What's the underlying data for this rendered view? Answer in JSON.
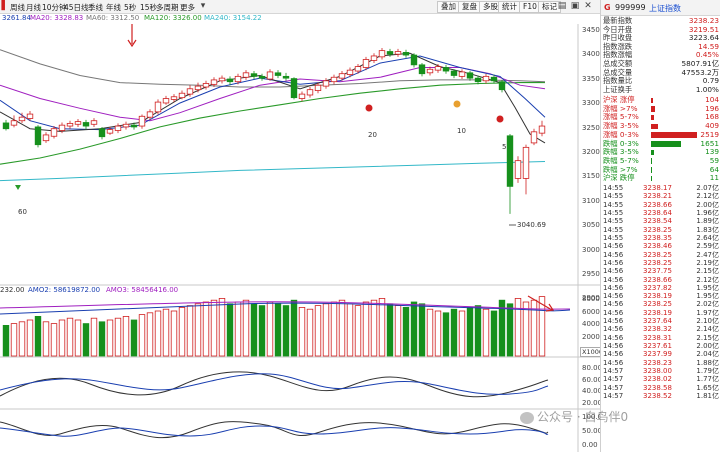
{
  "toolbar": {
    "items": [
      "周线",
      "月线",
      "10分钟",
      "45日线",
      "季线",
      "年线",
      "5秒",
      "15秒",
      "多周期",
      "更多"
    ],
    "buttons": [
      "叠加",
      "复盘",
      "多股",
      "统计",
      "F10",
      "标记"
    ]
  },
  "ma_legend": {
    "items": [
      {
        "text": "3261.84",
        "color": "#1a3fb0"
      },
      {
        "text": "MA20: 3328.83",
        "color": "#a020c0"
      },
      {
        "text": "MA60: 3312.50",
        "color": "#777777"
      },
      {
        "text": "MA120: 3326.00",
        "color": "#2a9a2a"
      },
      {
        "text": "MA240: 3154.22",
        "color": "#33b8c8"
      }
    ]
  },
  "price_axis": [
    "3450",
    "3400",
    "3350",
    "3300",
    "3250",
    "3200",
    "3150",
    "3100",
    "3050",
    "3000",
    "2950",
    "2900"
  ],
  "annotations": {
    "low_label": "3040.69",
    "n20": "20",
    "n10": "10",
    "n5": "5",
    "n60": "60"
  },
  "volume_legend": {
    "items": [
      {
        "text": "232.00",
        "color": "#333333"
      },
      {
        "text": "AMO2: 58619872.00",
        "color": "#1a3fb0"
      },
      {
        "text": "AMO3: 58456416.00",
        "color": "#a020c0"
      }
    ]
  },
  "volume_axis": [
    "80000",
    "60000",
    "40000",
    "20000"
  ],
  "volume_unit": "X1000",
  "indicator1_axis": [
    "80.00",
    "60.00",
    "40.00",
    "20.00"
  ],
  "indicator2_axis": [
    "100.00",
    "50.00",
    "0.00"
  ],
  "panel": {
    "code": "999999",
    "name": "上证指数",
    "stats": [
      {
        "label": "最新指数",
        "value": "3238.23",
        "color": "#d02020"
      },
      {
        "label": "今日开盘",
        "value": "3219.51",
        "color": "#d02020"
      },
      {
        "label": "昨日收盘",
        "value": "3223.64",
        "color": "#222222"
      },
      {
        "label": "指数涨跌",
        "value": "14.59",
        "color": "#d02020"
      },
      {
        "label": "指数涨幅",
        "value": "0.45%",
        "color": "#d02020"
      },
      {
        "label": "总成交额",
        "value": "5807.91亿",
        "color": "#222222"
      },
      {
        "label": "总成交量",
        "value": "47553.2万",
        "color": "#222222"
      },
      {
        "label": "指数量比",
        "value": "0.79",
        "color": "#222222"
      },
      {
        "label": "上证换手",
        "value": "1.00%",
        "color": "#222222"
      }
    ],
    "distribution": [
      {
        "label": "沪深 涨停",
        "value": "104",
        "bar": 0.04,
        "color": "#d02020"
      },
      {
        "label": "涨幅 >7%",
        "value": "196",
        "bar": 0.08,
        "color": "#d02020"
      },
      {
        "label": "涨幅 5-7%",
        "value": "168",
        "bar": 0.07,
        "color": "#d02020"
      },
      {
        "label": "涨幅 3-5%",
        "value": "409",
        "bar": 0.16,
        "color": "#d02020"
      },
      {
        "label": "涨幅 0-3%",
        "value": "2519",
        "bar": 1.0,
        "color": "#d02020"
      },
      {
        "label": "跌幅 0-3%",
        "value": "1651",
        "bar": 0.66,
        "color": "#16901c"
      },
      {
        "label": "跌幅 3-5%",
        "value": "139",
        "bar": 0.06,
        "color": "#16901c"
      },
      {
        "label": "跌幅 5-7%",
        "value": "59",
        "bar": 0.02,
        "color": "#16901c"
      },
      {
        "label": "跌幅 >7%",
        "value": "64",
        "bar": 0.03,
        "color": "#16901c"
      },
      {
        "label": "沪深 跌停",
        "value": "11",
        "bar": 0.005,
        "color": "#16901c"
      }
    ],
    "ticks": [
      {
        "time": "14:55",
        "price": "3238.17",
        "vol": "2.07亿"
      },
      {
        "time": "14:55",
        "price": "3238.21",
        "vol": "2.12亿"
      },
      {
        "time": "14:55",
        "price": "3238.66",
        "vol": "2.00亿"
      },
      {
        "time": "14:55",
        "price": "3238.64",
        "vol": "1.96亿"
      },
      {
        "time": "14:55",
        "price": "3238.54",
        "vol": "1.89亿"
      },
      {
        "time": "14:55",
        "price": "3238.25",
        "vol": "1.83亿"
      },
      {
        "time": "14:55",
        "price": "3238.35",
        "vol": "2.64亿"
      },
      {
        "time": "14:56",
        "price": "3238.46",
        "vol": "2.59亿"
      },
      {
        "time": "14:56",
        "price": "3238.25",
        "vol": "2.47亿"
      },
      {
        "time": "14:56",
        "price": "3238.25",
        "vol": "2.19亿"
      },
      {
        "time": "14:56",
        "price": "3237.75",
        "vol": "2.15亿"
      },
      {
        "time": "14:56",
        "price": "3238.66",
        "vol": "2.12亿"
      },
      {
        "time": "14:56",
        "price": "3237.82",
        "vol": "1.95亿"
      },
      {
        "time": "14:56",
        "price": "3238.19",
        "vol": "1.95亿"
      },
      {
        "time": "14:56",
        "price": "3238.25",
        "vol": "2.02亿"
      },
      {
        "time": "14:56",
        "price": "3238.19",
        "vol": "1.97亿"
      },
      {
        "time": "14:56",
        "price": "3237.64",
        "vol": "2.10亿"
      },
      {
        "time": "14:56",
        "price": "3238.32",
        "vol": "2.14亿"
      },
      {
        "time": "14:56",
        "price": "3238.31",
        "vol": "2.15亿"
      },
      {
        "time": "14:56",
        "price": "3237.61",
        "vol": "2.00亿"
      },
      {
        "time": "14:56",
        "price": "3237.99",
        "vol": "2.04亿"
      },
      {
        "time": "14:56",
        "price": "3238.23",
        "vol": "1.88亿"
      },
      {
        "time": "14:57",
        "price": "3238.00",
        "vol": "1.79亿"
      },
      {
        "time": "14:57",
        "price": "3238.02",
        "vol": "1.77亿"
      },
      {
        "time": "14:57",
        "price": "3238.58",
        "vol": "1.65亿"
      },
      {
        "time": "14:57",
        "price": "3238.52",
        "vol": "1.81亿"
      }
    ]
  },
  "watermark": "公众号 · 白鸟伴0"
}
